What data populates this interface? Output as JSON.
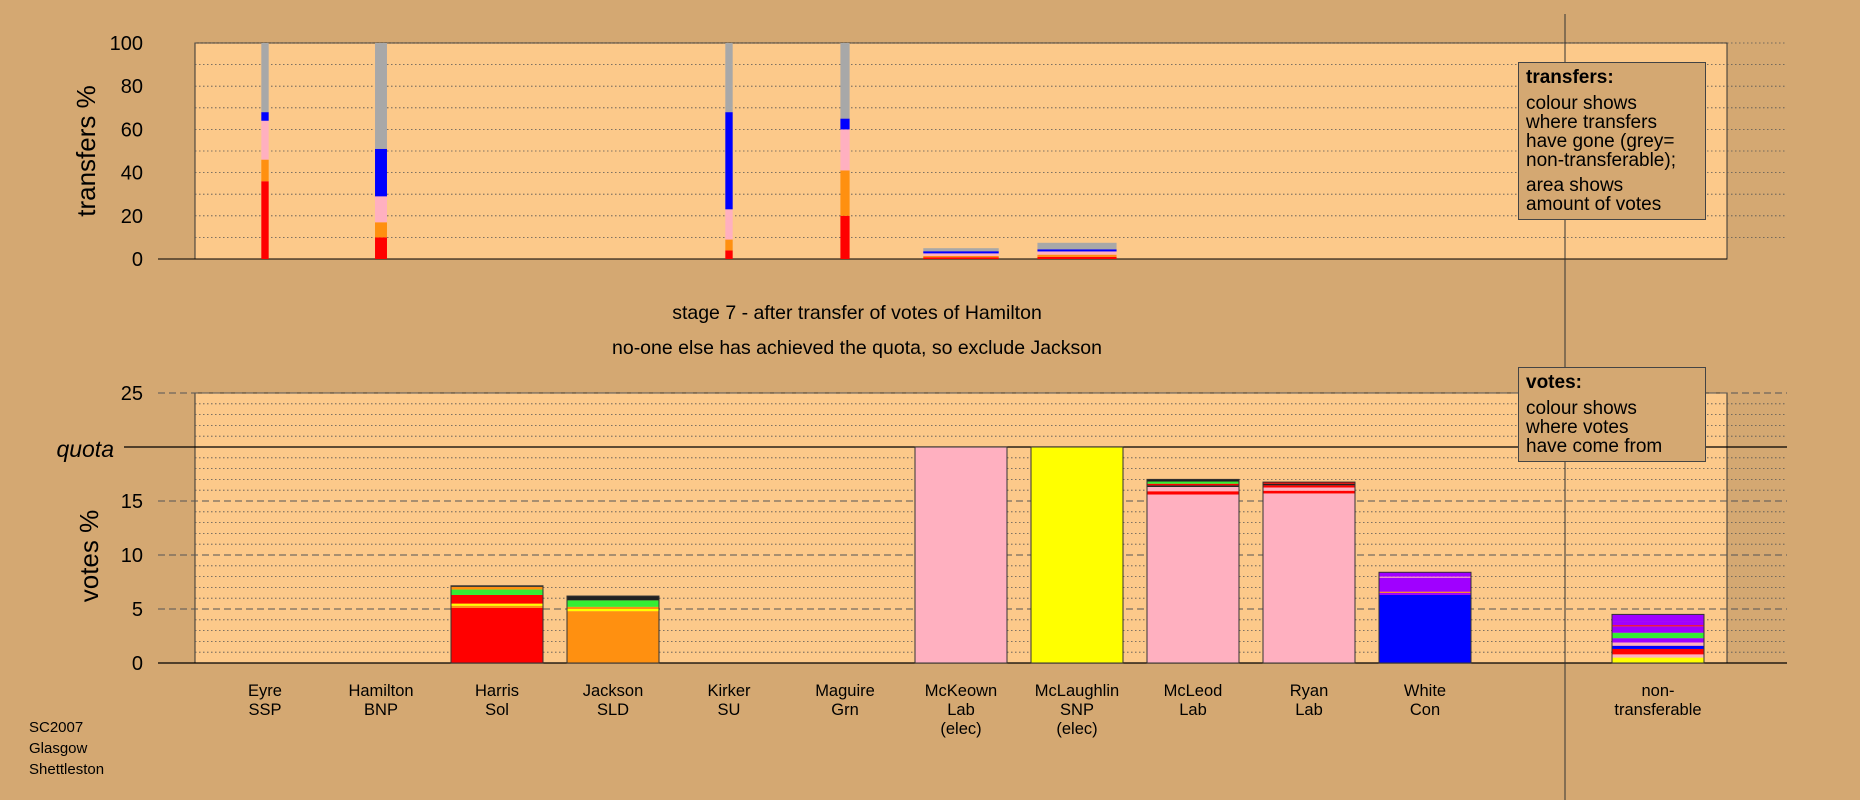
{
  "chart_data": [
    {
      "type": "bar",
      "stacked": true,
      "ylabel": "transfers %",
      "ylim": [
        0,
        100
      ],
      "yticks": [
        0,
        20,
        40,
        60,
        80,
        100
      ],
      "grid": true,
      "legend": {
        "title": "transfers:",
        "lines": [
          "colour shows\nwhere transfers\nhave gone (grey=\nnon-transferable);",
          "area shows\namount of votes"
        ],
        "placement": "top-right"
      },
      "categories": [
        "Eyre SSP",
        "Hamilton BNP",
        "Harris Sol",
        "Jackson SLD",
        "Kirker SU",
        "Maguire Grn",
        "McKeown Lab (elec)",
        "McLaughlin SNP (elec)",
        "McLeod Lab",
        "Ryan Lab",
        "White Con"
      ],
      "bars": [
        {
          "category": "Eyre SSP",
          "width": 0.08,
          "segments": [
            {
              "color": "#ff0000",
              "value": 36
            },
            {
              "color": "#ff9010",
              "value": 10
            },
            {
              "color": "#ffb0c0",
              "value": 18
            },
            {
              "color": "#0000ff",
              "value": 4
            },
            {
              "color": "#a8a8a8",
              "value": 32
            }
          ]
        },
        {
          "category": "Hamilton BNP",
          "width": 0.13,
          "segments": [
            {
              "color": "#ff0000",
              "value": 10
            },
            {
              "color": "#ff9010",
              "value": 7
            },
            {
              "color": "#ffb0c0",
              "value": 12
            },
            {
              "color": "#0000ff",
              "value": 22
            },
            {
              "color": "#a8a8a8",
              "value": 49
            }
          ]
        },
        {
          "category": "Kirker SU",
          "width": 0.08,
          "segments": [
            {
              "color": "#ff0000",
              "value": 4
            },
            {
              "color": "#ff9010",
              "value": 5
            },
            {
              "color": "#ffb0c0",
              "value": 14
            },
            {
              "color": "#0000ff",
              "value": 45
            },
            {
              "color": "#a8a8a8",
              "value": 32
            }
          ]
        },
        {
          "category": "Maguire Grn",
          "width": 0.1,
          "segments": [
            {
              "color": "#ff0000",
              "value": 20
            },
            {
              "color": "#ff9010",
              "value": 21
            },
            {
              "color": "#ffb0c0",
              "value": 19
            },
            {
              "color": "#0000ff",
              "value": 5
            },
            {
              "color": "#a8a8a8",
              "value": 35
            }
          ]
        },
        {
          "category": "McKeown Lab (elec)",
          "width": 0.82,
          "segments": [
            {
              "color": "#ff0000",
              "value": 0.8
            },
            {
              "color": "#ff9010",
              "value": 0.6
            },
            {
              "color": "#ffb0c0",
              "value": 1.2
            },
            {
              "color": "#0000ff",
              "value": 1
            },
            {
              "color": "#a8a8a8",
              "value": 1.4
            }
          ]
        },
        {
          "category": "McLaughlin SNP (elec)",
          "width": 0.86,
          "segments": [
            {
              "color": "#ff0000",
              "value": 1
            },
            {
              "color": "#ff9010",
              "value": 1
            },
            {
              "color": "#ffb0c0",
              "value": 1.5
            },
            {
              "color": "#0000ff",
              "value": 1
            },
            {
              "color": "#a8a8a8",
              "value": 3
            }
          ]
        }
      ]
    },
    {
      "type": "bar",
      "stacked": true,
      "ylabel": "votes %",
      "ylim": [
        0,
        25
      ],
      "yticks": [
        0,
        5,
        10,
        15,
        25
      ],
      "quota": 20,
      "quota_label": "quota",
      "grid": true,
      "legend": {
        "title": "votes:",
        "lines": [
          "colour shows\nwhere votes\nhave come from"
        ],
        "placement": "top-right"
      },
      "categories": [
        [
          "Eyre",
          "SSP"
        ],
        [
          "Hamilton",
          "BNP"
        ],
        [
          "Harris",
          "Sol"
        ],
        [
          "Jackson",
          "SLD"
        ],
        [
          "Kirker",
          "SU"
        ],
        [
          "Maguire",
          "Grn"
        ],
        [
          "McKeown",
          "Lab",
          "(elec)"
        ],
        [
          "McLaughlin",
          "SNP",
          "(elec)"
        ],
        [
          "McLeod",
          "Lab"
        ],
        [
          "Ryan",
          "Lab"
        ],
        [
          "White",
          "Con"
        ],
        [],
        [
          "non-",
          "transferable"
        ]
      ],
      "bars": [
        {
          "index": 0,
          "segments": []
        },
        {
          "index": 1,
          "segments": []
        },
        {
          "index": 2,
          "segments": [
            {
              "color": "#ff0000",
              "value": 5.1
            },
            {
              "color": "#ff9010",
              "value": 0.2
            },
            {
              "color": "#ffff00",
              "value": 0.2
            },
            {
              "color": "#ff0000",
              "value": 0.8
            },
            {
              "color": "#33ee33",
              "value": 0.5
            },
            {
              "color": "#ff9010",
              "value": 0.25
            },
            {
              "color": "#222222",
              "value": 0.1
            }
          ]
        },
        {
          "index": 3,
          "segments": [
            {
              "color": "#ff9010",
              "value": 4.8
            },
            {
              "color": "#ffff00",
              "value": 0.2
            },
            {
              "color": "#ff9010",
              "value": 0.2
            },
            {
              "color": "#33ee33",
              "value": 0.6
            },
            {
              "color": "#222222",
              "value": 0.4
            }
          ]
        },
        {
          "index": 4,
          "segments": []
        },
        {
          "index": 5,
          "segments": []
        },
        {
          "index": 6,
          "segments": [
            {
              "color": "#ffb0c0",
              "value": 20
            }
          ]
        },
        {
          "index": 7,
          "segments": [
            {
              "color": "#ffff00",
              "value": 20
            }
          ]
        },
        {
          "index": 8,
          "segments": [
            {
              "color": "#ffb0c0",
              "value": 15.6
            },
            {
              "color": "#ff0000",
              "value": 0.3
            },
            {
              "color": "#ffb0c0",
              "value": 0.4
            },
            {
              "color": "#222222",
              "value": 0.15
            },
            {
              "color": "#ff0000",
              "value": 0.15
            },
            {
              "color": "#33ee33",
              "value": 0.2
            },
            {
              "color": "#222222",
              "value": 0.2
            }
          ]
        },
        {
          "index": 9,
          "segments": [
            {
              "color": "#ffb0c0",
              "value": 15.7
            },
            {
              "color": "#ff0000",
              "value": 0.25
            },
            {
              "color": "#ffb0c0",
              "value": 0.3
            },
            {
              "color": "#ff0000",
              "value": 0.2
            },
            {
              "color": "#222222",
              "value": 0.15
            },
            {
              "color": "#ff0000",
              "value": 0.15
            }
          ]
        },
        {
          "index": 10,
          "segments": [
            {
              "color": "#0000ff",
              "value": 6.3
            },
            {
              "color": "#a000ff",
              "value": 0.2
            },
            {
              "color": "#ff9010",
              "value": 0.1
            },
            {
              "color": "#a000ff",
              "value": 1.3
            },
            {
              "color": "#ffb0c0",
              "value": 0.1
            },
            {
              "color": "#a000ff",
              "value": 0.4
            }
          ]
        },
        {
          "index": 12,
          "segments": [
            {
              "color": "#ffff00",
              "value": 0.5
            },
            {
              "color": "#ffb0c0",
              "value": 0.3
            },
            {
              "color": "#ff0000",
              "value": 0.5
            },
            {
              "color": "#0000ff",
              "value": 0.3
            },
            {
              "color": "#ffb0c0",
              "value": 0.3
            },
            {
              "color": "#a000ff",
              "value": 0.4
            },
            {
              "color": "#33ee33",
              "value": 0.5
            },
            {
              "color": "#a000ff",
              "value": 0.6
            },
            {
              "color": "#ff0000",
              "value": 0.1
            },
            {
              "color": "#a000ff",
              "value": 0.3
            },
            {
              "color": "#a000ff",
              "value": 0.7
            }
          ]
        }
      ]
    }
  ],
  "captions": {
    "stage": "stage 7 - after transfer of votes of Hamilton",
    "note": "no-one else has achieved the quota, so exclude Jackson"
  },
  "footer": {
    "line1": "SC2007",
    "line2": "Glasgow",
    "line3": "Shettleston"
  },
  "colors": {
    "page_background": "#d4a872",
    "plot_background": "#fcc98a"
  }
}
